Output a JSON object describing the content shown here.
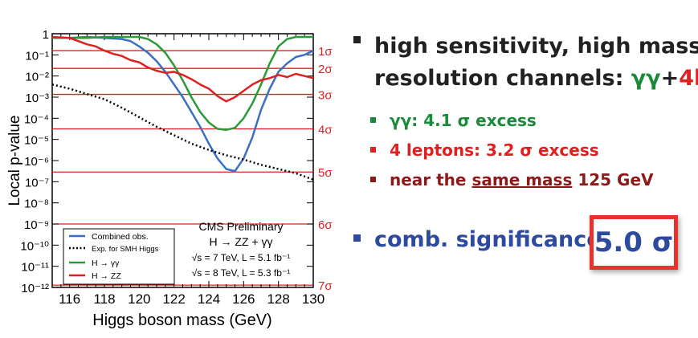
{
  "chart_data": {
    "type": "line",
    "title": "",
    "xlabel": "Higgs boson mass (GeV)",
    "ylabel": "Local p-value",
    "xlim": [
      115,
      130
    ],
    "ylim_log10": [
      -12,
      0
    ],
    "log_y": true,
    "x_ticks": [
      "116",
      "118",
      "120",
      "122",
      "124",
      "126",
      "128",
      "130"
    ],
    "y_ticks": [
      {
        "exp": 0,
        "label": "1"
      },
      {
        "exp": -1,
        "label": "10⁻¹"
      },
      {
        "exp": -2,
        "label": "10⁻²"
      },
      {
        "exp": -3,
        "label": "10⁻³"
      },
      {
        "exp": -4,
        "label": "10⁻⁴"
      },
      {
        "exp": -5,
        "label": "10⁻⁵"
      },
      {
        "exp": -6,
        "label": "10⁻⁶"
      },
      {
        "exp": -7,
        "label": "10⁻⁷"
      },
      {
        "exp": -8,
        "label": "10⁻⁸"
      },
      {
        "exp": -9,
        "label": "10⁻⁹"
      },
      {
        "exp": -10,
        "label": "10⁻¹⁰"
      },
      {
        "exp": -11,
        "label": "10⁻¹¹"
      },
      {
        "exp": -12,
        "label": "10⁻¹²"
      }
    ],
    "sigma_lines": [
      {
        "label": "1σ",
        "p_log10": -0.8
      },
      {
        "label": "2σ",
        "p_log10": -1.64
      },
      {
        "label": "3σ",
        "p_log10": -2.87
      },
      {
        "label": "4σ",
        "p_log10": -4.5
      },
      {
        "label": "5σ",
        "p_log10": -6.54
      },
      {
        "label": "6σ",
        "p_log10": -9.0
      },
      {
        "label": "7σ",
        "p_log10": -11.89
      }
    ],
    "series": [
      {
        "name": "Combined obs.",
        "color": "#3a6fc4",
        "dash": "solid",
        "x": [
          115,
          116,
          117,
          118,
          119,
          119.5,
          120,
          120.5,
          121,
          121.5,
          122,
          122.5,
          123,
          123.5,
          124,
          124.5,
          125,
          125.5,
          126,
          126.5,
          127,
          127.5,
          128,
          128.5,
          129,
          129.5,
          130
        ],
        "log_p": [
          -0.2,
          -0.2,
          -0.15,
          -0.2,
          -0.25,
          -0.35,
          -0.6,
          -0.9,
          -1.3,
          -1.8,
          -2.4,
          -3.0,
          -3.7,
          -4.4,
          -5.2,
          -5.9,
          -6.4,
          -6.5,
          -5.9,
          -4.9,
          -3.6,
          -2.6,
          -1.8,
          -1.4,
          -1.1,
          -1.0,
          -0.8
        ]
      },
      {
        "name": "Exp. for SMH Higgs",
        "color": "#000000",
        "dash": "dotted",
        "x": [
          115,
          116,
          117,
          118,
          119,
          120,
          121,
          122,
          123,
          124,
          125,
          126,
          127,
          128,
          129,
          130
        ],
        "log_p": [
          -2.4,
          -2.6,
          -2.85,
          -3.1,
          -3.5,
          -3.95,
          -4.4,
          -4.8,
          -5.2,
          -5.5,
          -5.75,
          -5.95,
          -6.2,
          -6.4,
          -6.6,
          -6.9
        ]
      },
      {
        "name": "H → γγ",
        "color": "#2a9a3a",
        "dash": "solid",
        "x": [
          115,
          116,
          117,
          118,
          119,
          120,
          120.5,
          121,
          121.5,
          122,
          122.5,
          123,
          123.5,
          124,
          124.5,
          125,
          125.5,
          126,
          126.5,
          127,
          127.5,
          128,
          128.5,
          129,
          129.5,
          130
        ],
        "log_p": [
          -0.2,
          -0.2,
          -0.2,
          -0.15,
          -0.15,
          -0.15,
          -0.25,
          -0.5,
          -0.9,
          -1.5,
          -2.2,
          -3.0,
          -3.7,
          -4.2,
          -4.5,
          -4.55,
          -4.45,
          -4.0,
          -3.3,
          -2.4,
          -1.4,
          -0.6,
          -0.25,
          -0.15,
          -0.15,
          -0.15
        ]
      },
      {
        "name": "H → ZZ",
        "color": "#e02020",
        "dash": "solid",
        "x": [
          115,
          116,
          116.5,
          117,
          117.5,
          118,
          118.5,
          119,
          119.5,
          120,
          120.5,
          121,
          121.5,
          122,
          122.5,
          123,
          123.5,
          124,
          124.5,
          125,
          125.5,
          126,
          126.5,
          127,
          127.5,
          128,
          128.5,
          129,
          129.5,
          130
        ],
        "log_p": [
          -0.15,
          -0.2,
          -0.35,
          -0.5,
          -0.6,
          -0.8,
          -0.95,
          -1.05,
          -1.25,
          -1.35,
          -1.6,
          -1.75,
          -1.85,
          -1.8,
          -1.95,
          -2.15,
          -2.4,
          -2.6,
          -2.95,
          -3.2,
          -3.0,
          -2.7,
          -2.4,
          -2.2,
          -2.1,
          -1.95,
          -2.05,
          -1.9,
          -2.0,
          -2.1
        ]
      }
    ],
    "legend_position": "bottom-left",
    "annotation": {
      "line1": "CMS Preliminary",
      "line2": "H → ZZ + γγ",
      "line3": "√s = 7 TeV, L = 5.1 fb⁻¹",
      "line4": "√s = 8 TeV, L = 5.3 fb⁻¹"
    },
    "grid": false
  },
  "slide": {
    "bullet1_line1": "high sensitivity, high mass",
    "bullet1_line2_prefix": "resolution channels: ",
    "bullet1_gg": "γγ",
    "bullet1_plus": "+",
    "bullet1_4l": "4l",
    "sub1": "γγ:  4.1 σ excess",
    "sub2": "4 leptons: 3.2 σ excess",
    "sub3_prefix": "near the ",
    "sub3_underlined": "same mass",
    "sub3_suffix": " 125 GeV",
    "comb_label": "comb. significance:",
    "comb_value": "5.0 σ",
    "colors": {
      "green": "#1a8a3a",
      "red": "#e02020",
      "darkred": "#8b1a1a",
      "blue": "#2d4a9e",
      "box": "#e8322c"
    }
  }
}
